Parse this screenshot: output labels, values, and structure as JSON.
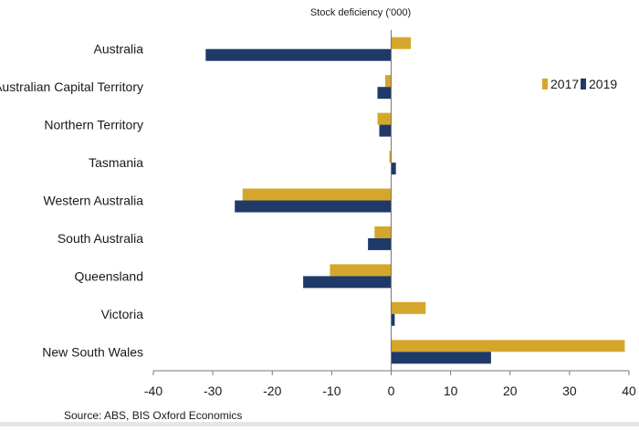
{
  "chart_data": {
    "type": "bar",
    "orientation": "horizontal",
    "title": "Stock deficiency ('000)",
    "categories": [
      "Australia",
      "Australian Capital Territory",
      "Northern Territory",
      "Tasmania",
      "Western Australia",
      "South Australia",
      "Queensland",
      "Victoria",
      "New South Wales"
    ],
    "series": [
      {
        "name": "2017",
        "color": "#D4A72C",
        "values": [
          3.3,
          -1.0,
          -2.3,
          -0.3,
          -25.0,
          -2.8,
          -10.3,
          5.8,
          39.3
        ]
      },
      {
        "name": "2019",
        "color": "#1F3A68",
        "values": [
          -31.2,
          -2.3,
          -2.0,
          0.8,
          -26.3,
          -3.9,
          -14.8,
          0.6,
          16.8
        ]
      }
    ],
    "xlim": [
      -40,
      40
    ],
    "xticks": [
      -40,
      -30,
      -20,
      -10,
      0,
      10,
      20,
      30,
      40
    ],
    "xtick_labels": [
      "-40",
      "-30",
      "-20",
      "-10",
      "0",
      "10",
      "20",
      "30",
      "40"
    ],
    "legend_position": "right",
    "grid": false,
    "source": "Source:  ABS, BIS Oxford Economics"
  }
}
